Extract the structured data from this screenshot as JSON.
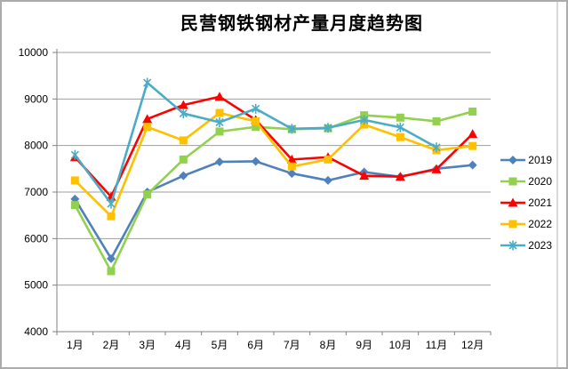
{
  "chart_data": {
    "type": "line",
    "title": "民营钢铁钢材产量月度趋势图",
    "categories": [
      "1月",
      "2月",
      "3月",
      "4月",
      "5月",
      "6月",
      "7月",
      "8月",
      "9月",
      "10月",
      "11月",
      "12月"
    ],
    "series": [
      {
        "name": "2019",
        "color": "#4F81BD",
        "marker": "diamond",
        "values": [
          6850,
          5570,
          7000,
          7350,
          7650,
          7660,
          7400,
          7250,
          7430,
          7330,
          7500,
          7580
        ]
      },
      {
        "name": "2020",
        "color": "#92D050",
        "marker": "square",
        "values": [
          6720,
          5300,
          6950,
          7700,
          8300,
          8400,
          8350,
          8370,
          8650,
          8600,
          8520,
          8730
        ]
      },
      {
        "name": "2021",
        "color": "#FF0000",
        "marker": "triangle",
        "values": [
          7750,
          6900,
          8570,
          8870,
          9050,
          8550,
          7700,
          7750,
          7350,
          7330,
          7490,
          8250
        ]
      },
      {
        "name": "2022",
        "color": "#FFC000",
        "marker": "square",
        "values": [
          7250,
          6480,
          8400,
          8110,
          8700,
          8520,
          7550,
          7700,
          8450,
          8180,
          7900,
          7990
        ]
      },
      {
        "name": "2023",
        "color": "#4BACC6",
        "marker": "asterisk",
        "values": [
          7800,
          6750,
          9350,
          8690,
          8500,
          8790,
          8360,
          8380,
          8550,
          8390,
          7960
        ]
      }
    ],
    "xlabel": "",
    "ylabel": "",
    "ylim": [
      4000,
      10000
    ],
    "ytick_step": 1000,
    "yticks": [
      "4000",
      "5000",
      "6000",
      "7000",
      "8000",
      "9000",
      "10000"
    ],
    "grid": "horizontal",
    "legend_position": "right",
    "axis_color": "#808080",
    "grid_color": "#9e9e9e",
    "text_color": "#000000",
    "frame_color": "#b3b3b3"
  }
}
